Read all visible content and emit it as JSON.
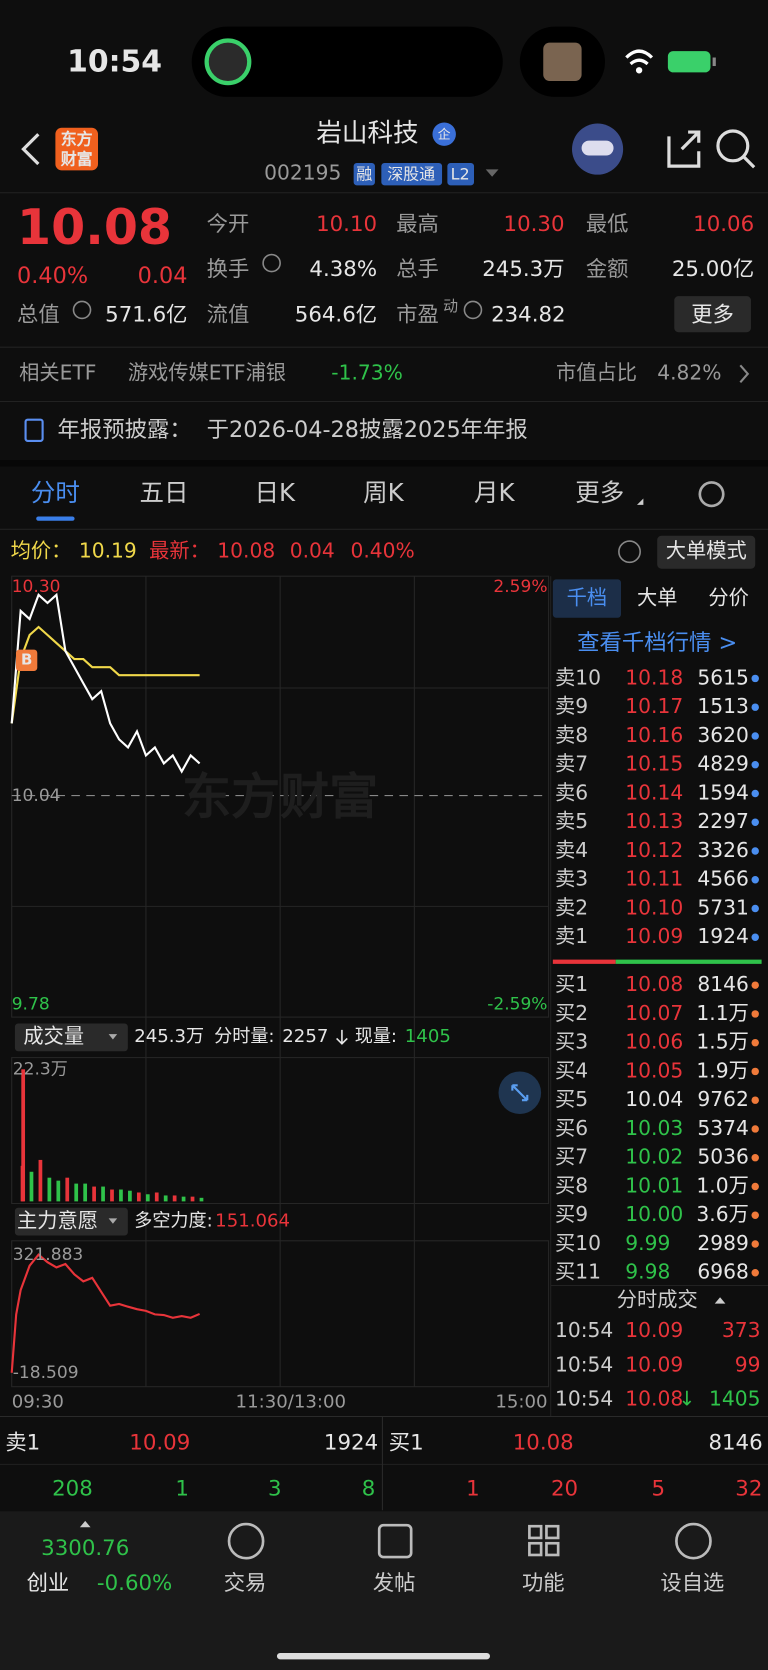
{
  "status_bar": {
    "time": "10:54"
  },
  "header": {
    "logo": [
      "东方",
      "财富"
    ],
    "name": "岩山科技",
    "badge": "企",
    "code": "002195",
    "tags": [
      "融",
      "深股通",
      "L2"
    ]
  },
  "quote": {
    "price": "10.08",
    "change_pct": "0.40%",
    "change": "0.04",
    "stats": [
      {
        "label": "今开",
        "value": "10.10"
      },
      {
        "label": "最高",
        "value": "10.30"
      },
      {
        "label": "最低",
        "value": "10.06"
      },
      {
        "label": "换手",
        "value": "4.38%"
      },
      {
        "label": "总手",
        "value": "245.3万"
      },
      {
        "label": "金额",
        "value": "25.00亿"
      },
      {
        "label": "总值",
        "value": "571.6亿"
      },
      {
        "label": "流值",
        "value": "564.6亿"
      },
      {
        "label": "市盈",
        "sup": "动",
        "value": "234.82"
      }
    ],
    "more_button": "更多"
  },
  "etf": {
    "label": "相关ETF",
    "name": "游戏传媒ETF浦银",
    "change": "-1.73%",
    "share_label": "市值占比",
    "share": "4.82%"
  },
  "notice": {
    "title": "年报预披露：",
    "text": "于2026-04-28披露2025年年报"
  },
  "tabs": {
    "items": [
      "分时",
      "五日",
      "日K",
      "周K",
      "月K",
      "更多"
    ],
    "active": 0
  },
  "intraday": {
    "avg_label": "均价：",
    "avg": "10.19",
    "last_label": "最新：",
    "last": "10.08",
    "change": "0.04",
    "change_pct": "0.40%",
    "mode_button": "大单模式",
    "watermark": "东方财富",
    "marker": "B",
    "ylim": [
      9.78,
      10.3
    ],
    "yticks": [
      {
        "value": 10.3,
        "label": "10.30"
      },
      10.04,
      9.78
    ],
    "pct_top": "2.59%",
    "pct_bottom": "-2.59%",
    "xlim": [
      0,
      240
    ],
    "x_labels": [
      "09:30",
      "11:30/13:00",
      "15:00"
    ],
    "minutes": [
      0,
      4,
      8,
      12,
      16,
      20,
      24,
      28,
      32,
      36,
      40,
      44,
      48,
      52,
      56,
      60,
      64,
      68,
      72,
      76,
      80,
      84
    ],
    "price": [
      10.13,
      10.27,
      10.26,
      10.29,
      10.28,
      10.29,
      10.22,
      10.2,
      10.18,
      10.16,
      10.17,
      10.13,
      10.11,
      10.1,
      10.12,
      10.09,
      10.1,
      10.08,
      10.09,
      10.07,
      10.09,
      10.08
    ],
    "avg_price": [
      10.13,
      10.21,
      10.24,
      10.25,
      10.24,
      10.23,
      10.22,
      10.21,
      10.21,
      10.2,
      10.2,
      10.2,
      10.19,
      10.19,
      10.19,
      10.19,
      10.19,
      10.19,
      10.19,
      10.19,
      10.19,
      10.19
    ]
  },
  "volume": {
    "title": "成交量",
    "total": "245.3万",
    "minute_label": "分时量:",
    "minute": "2257",
    "current_label": "现量:",
    "current": "1405",
    "top_label": "22.3万",
    "ylim": [
      0,
      22.3
    ],
    "minutes": [
      0,
      4,
      8,
      12,
      16,
      20,
      24,
      28,
      32,
      36,
      40,
      44,
      48,
      52,
      56,
      60,
      64,
      68,
      72,
      76,
      80,
      84
    ],
    "values": [
      22.3,
      6,
      5,
      7,
      4,
      3.5,
      4,
      3,
      3,
      2.5,
      2.5,
      2,
      2,
      1.8,
      1.5,
      1.2,
      1.5,
      1,
      1,
      0.8,
      0.8,
      0.6
    ],
    "colors": [
      "#e8343a",
      "#e8343a",
      "#2fc24a",
      "#e8343a",
      "#2fc24a",
      "#2fc24a",
      "#e8343a",
      "#2fc24a",
      "#2fc24a",
      "#e8343a",
      "#2fc24a",
      "#e8343a",
      "#2fc24a",
      "#2fc24a",
      "#e8343a",
      "#2fc24a",
      "#e8343a",
      "#2fc24a",
      "#e8343a",
      "#2fc24a",
      "#e8343a",
      "#2fc24a"
    ]
  },
  "main_force": {
    "title": "主力意愿",
    "strength_label": "多空力度:",
    "strength": "151.064",
    "top_label": 321.883,
    "bottom_label": -18.509,
    "minutes": [
      0,
      2,
      4,
      8,
      12,
      16,
      20,
      24,
      28,
      32,
      36,
      40,
      44,
      48,
      52,
      56,
      60,
      64,
      68,
      72,
      76,
      80,
      84
    ],
    "values": [
      -18.509,
      150,
      220,
      290,
      321.883,
      300,
      285,
      295,
      265,
      245,
      255,
      215,
      175,
      180,
      172,
      165,
      160,
      150,
      148,
      140,
      145,
      140,
      151.064
    ]
  },
  "order_book": {
    "tabs": [
      "千档",
      "大单",
      "分价"
    ],
    "link": "查看千档行情 >",
    "asks": [
      [
        "卖10",
        "10.18",
        "5615"
      ],
      [
        "卖9",
        "10.17",
        "1513"
      ],
      [
        "卖8",
        "10.16",
        "3620"
      ],
      [
        "卖7",
        "10.15",
        "4829"
      ],
      [
        "卖6",
        "10.14",
        "1594"
      ],
      [
        "卖5",
        "10.13",
        "2297"
      ],
      [
        "卖4",
        "10.12",
        "3326"
      ],
      [
        "卖3",
        "10.11",
        "4566"
      ],
      [
        "卖2",
        "10.10",
        "5731"
      ],
      [
        "卖1",
        "10.09",
        "1924"
      ]
    ],
    "bids": [
      [
        "买1",
        "10.08",
        "8146"
      ],
      [
        "买2",
        "10.07",
        "1.1万"
      ],
      [
        "买3",
        "10.06",
        "1.5万"
      ],
      [
        "买4",
        "10.05",
        "1.9万"
      ],
      [
        "买5",
        "10.04",
        "9762"
      ],
      [
        "买6",
        "10.03",
        "5374"
      ],
      [
        "买7",
        "10.02",
        "5036"
      ],
      [
        "买8",
        "10.01",
        "1.0万"
      ],
      [
        "买9",
        "10.00",
        "3.6万"
      ],
      [
        "买10",
        "9.99",
        "2989"
      ],
      [
        "买11",
        "9.98",
        "6968"
      ]
    ]
  },
  "trades": {
    "title": "分时成交",
    "rows": [
      [
        "10:54",
        "10.09",
        "373"
      ],
      [
        "10:54",
        "10.09",
        "99"
      ],
      [
        "10:54",
        "10.08",
        "1405",
        "↓"
      ]
    ]
  },
  "level1": {
    "ask_label": "卖1",
    "ask_price": "10.09",
    "ask_volume": "1924",
    "bid_label": "买1",
    "bid_price": "10.08",
    "bid_volume": "8146",
    "ask_counts": [
      "208",
      "1",
      "3",
      "8"
    ],
    "bid_counts": [
      "1",
      "20",
      "5",
      "32"
    ]
  },
  "nav": {
    "index_value": "3300.76",
    "index_name": "创业",
    "index_change": "-0.60%",
    "items": [
      "交易",
      "发帖",
      "功能",
      "设自选"
    ]
  }
}
